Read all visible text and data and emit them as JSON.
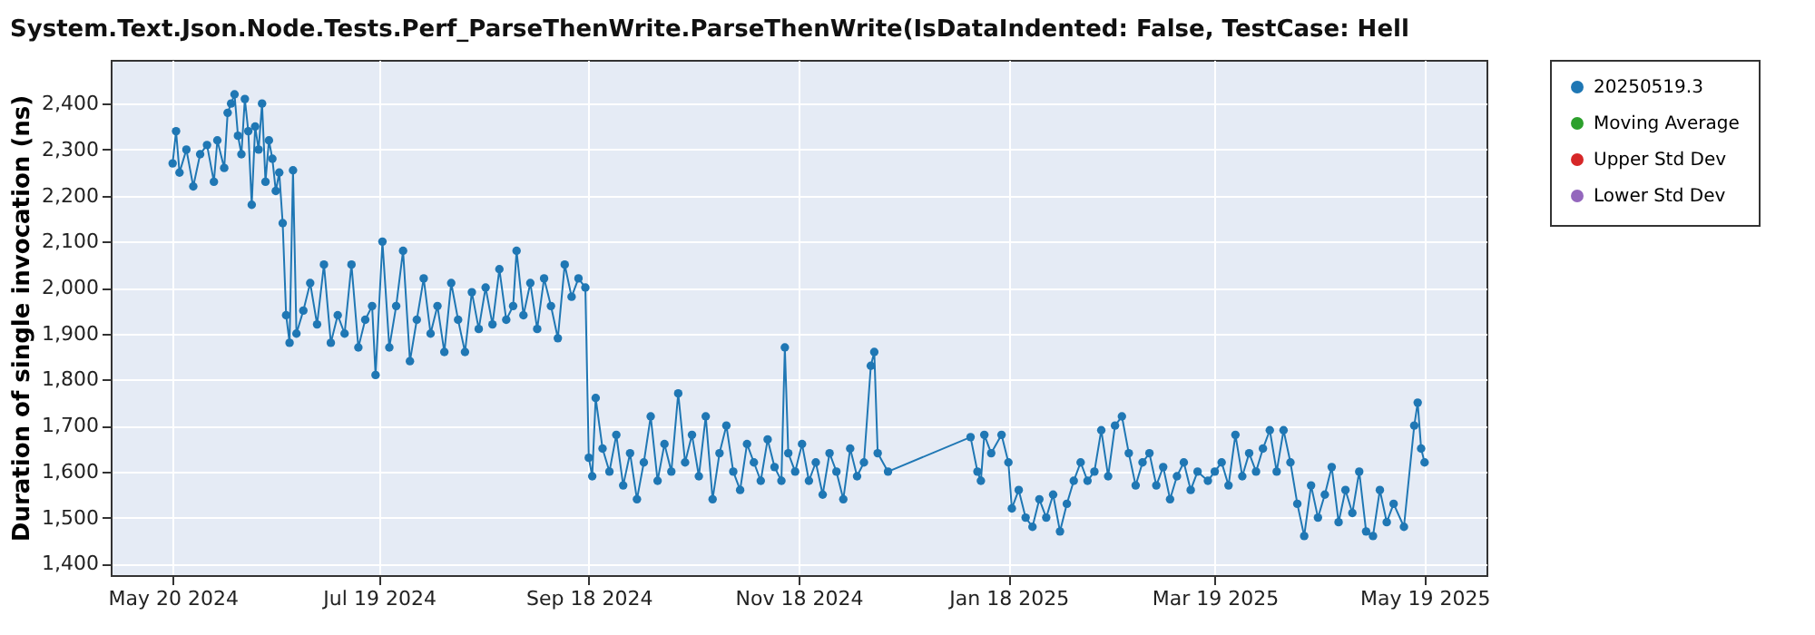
{
  "chart_data": {
    "type": "line",
    "title": "System.Text.Json.Node.Tests.Perf_ParseThenWrite.ParseThenWrite(IsDataIndented: False, TestCase: Hell",
    "ylabel": "Duration of single invocation (ns)",
    "x": [
      "2024-05-20",
      "2024-05-21",
      "2024-05-22",
      "2024-05-24",
      "2024-05-26",
      "2024-05-28",
      "2024-05-30",
      "2024-06-01",
      "2024-06-02",
      "2024-06-04",
      "2024-06-05",
      "2024-06-06",
      "2024-06-07",
      "2024-06-08",
      "2024-06-09",
      "2024-06-10",
      "2024-06-11",
      "2024-06-12",
      "2024-06-13",
      "2024-06-14",
      "2024-06-15",
      "2024-06-16",
      "2024-06-17",
      "2024-06-18",
      "2024-06-19",
      "2024-06-20",
      "2024-06-21",
      "2024-06-22",
      "2024-06-23",
      "2024-06-24",
      "2024-06-25",
      "2024-06-27",
      "2024-06-29",
      "2024-07-01",
      "2024-07-03",
      "2024-07-05",
      "2024-07-07",
      "2024-07-09",
      "2024-07-11",
      "2024-07-13",
      "2024-07-15",
      "2024-07-17",
      "2024-07-18",
      "2024-07-20",
      "2024-07-22",
      "2024-07-24",
      "2024-07-26",
      "2024-07-28",
      "2024-07-30",
      "2024-08-01",
      "2024-08-03",
      "2024-08-05",
      "2024-08-07",
      "2024-08-09",
      "2024-08-11",
      "2024-08-13",
      "2024-08-15",
      "2024-08-17",
      "2024-08-19",
      "2024-08-21",
      "2024-08-23",
      "2024-08-25",
      "2024-08-27",
      "2024-08-28",
      "2024-08-30",
      "2024-09-01",
      "2024-09-03",
      "2024-09-05",
      "2024-09-07",
      "2024-09-09",
      "2024-09-11",
      "2024-09-13",
      "2024-09-15",
      "2024-09-17",
      "2024-09-18",
      "2024-09-19",
      "2024-09-20",
      "2024-09-22",
      "2024-09-24",
      "2024-09-26",
      "2024-09-28",
      "2024-09-30",
      "2024-10-02",
      "2024-10-04",
      "2024-10-06",
      "2024-10-08",
      "2024-10-10",
      "2024-10-12",
      "2024-10-14",
      "2024-10-16",
      "2024-10-18",
      "2024-10-20",
      "2024-10-22",
      "2024-10-24",
      "2024-10-26",
      "2024-10-28",
      "2024-10-30",
      "2024-11-01",
      "2024-11-03",
      "2024-11-05",
      "2024-11-07",
      "2024-11-09",
      "2024-11-11",
      "2024-11-13",
      "2024-11-14",
      "2024-11-15",
      "2024-11-17",
      "2024-11-19",
      "2024-11-21",
      "2024-11-23",
      "2024-11-25",
      "2024-11-27",
      "2024-11-29",
      "2024-12-01",
      "2024-12-03",
      "2024-12-05",
      "2024-12-07",
      "2024-12-09",
      "2024-12-10",
      "2024-12-11",
      "2024-12-14",
      "2025-01-07",
      "2025-01-09",
      "2025-01-10",
      "2025-01-11",
      "2025-01-13",
      "2025-01-16",
      "2025-01-18",
      "2025-01-19",
      "2025-01-21",
      "2025-01-23",
      "2025-01-25",
      "2025-01-27",
      "2025-01-29",
      "2025-01-31",
      "2025-02-02",
      "2025-02-04",
      "2025-02-06",
      "2025-02-08",
      "2025-02-10",
      "2025-02-12",
      "2025-02-14",
      "2025-02-16",
      "2025-02-18",
      "2025-02-20",
      "2025-02-22",
      "2025-02-24",
      "2025-02-26",
      "2025-02-28",
      "2025-03-02",
      "2025-03-04",
      "2025-03-06",
      "2025-03-08",
      "2025-03-10",
      "2025-03-12",
      "2025-03-14",
      "2025-03-17",
      "2025-03-19",
      "2025-03-21",
      "2025-03-23",
      "2025-03-25",
      "2025-03-27",
      "2025-03-29",
      "2025-03-31",
      "2025-04-02",
      "2025-04-04",
      "2025-04-06",
      "2025-04-08",
      "2025-04-10",
      "2025-04-12",
      "2025-04-14",
      "2025-04-16",
      "2025-04-18",
      "2025-04-20",
      "2025-04-22",
      "2025-04-24",
      "2025-04-26",
      "2025-04-28",
      "2025-04-30",
      "2025-05-02",
      "2025-05-04",
      "2025-05-06",
      "2025-05-08",
      "2025-05-10",
      "2025-05-13",
      "2025-05-16",
      "2025-05-17",
      "2025-05-18",
      "2025-05-19"
    ],
    "series": [
      {
        "name": "20250519.3",
        "color": "#1f77b4",
        "values": [
          2270,
          2340,
          2250,
          2300,
          2220,
          2290,
          2310,
          2230,
          2320,
          2260,
          2380,
          2400,
          2420,
          2330,
          2290,
          2410,
          2340,
          2180,
          2350,
          2300,
          2400,
          2230,
          2320,
          2280,
          2210,
          2250,
          2140,
          1940,
          1880,
          2255,
          1900,
          1950,
          2010,
          1920,
          2050,
          1880,
          1940,
          1900,
          2050,
          1870,
          1930,
          1960,
          1810,
          2100,
          1870,
          1960,
          2080,
          1840,
          1930,
          2020,
          1900,
          1960,
          1860,
          2010,
          1930,
          1860,
          1990,
          1910,
          2000,
          1920,
          2040,
          1930,
          1960,
          2080,
          1940,
          2010,
          1910,
          2020,
          1960,
          1890,
          2050,
          1980,
          2020,
          2000,
          1630,
          1590,
          1760,
          1650,
          1600,
          1680,
          1570,
          1640,
          1540,
          1620,
          1720,
          1580,
          1660,
          1600,
          1770,
          1620,
          1680,
          1590,
          1720,
          1540,
          1640,
          1700,
          1600,
          1560,
          1660,
          1620,
          1580,
          1670,
          1610,
          1580,
          1870,
          1640,
          1600,
          1660,
          1580,
          1620,
          1550,
          1640,
          1600,
          1540,
          1650,
          1590,
          1620,
          1830,
          1860,
          1640,
          1600,
          1675,
          1600,
          1580,
          1680,
          1640,
          1680,
          1620,
          1520,
          1560,
          1500,
          1480,
          1540,
          1500,
          1550,
          1470,
          1530,
          1580,
          1620,
          1580,
          1600,
          1690,
          1590,
          1700,
          1720,
          1640,
          1570,
          1620,
          1640,
          1570,
          1610,
          1540,
          1590,
          1620,
          1560,
          1600,
          1580,
          1600,
          1620,
          1570,
          1680,
          1590,
          1640,
          1600,
          1650,
          1690,
          1600,
          1690,
          1620,
          1530,
          1460,
          1570,
          1500,
          1550,
          1610,
          1490,
          1560,
          1510,
          1600,
          1470,
          1460,
          1560,
          1490,
          1530,
          1480,
          1700,
          1750,
          1650,
          1620
        ]
      },
      {
        "name": "Moving Average",
        "color": "#2ca02c",
        "values": [
          null,
          null,
          null,
          null,
          null,
          null,
          null,
          null,
          null,
          null,
          null,
          null,
          null,
          null,
          null,
          null,
          null,
          null,
          null,
          null,
          null,
          null,
          null,
          null,
          null,
          null,
          null,
          null,
          null,
          null,
          null,
          null,
          null,
          null,
          null,
          null,
          null,
          null,
          null,
          null,
          null,
          null,
          null,
          null,
          null,
          null,
          null,
          null,
          null,
          null,
          null,
          null,
          null,
          null,
          null,
          null,
          null,
          null,
          null,
          null,
          null,
          null,
          null,
          null,
          null,
          null,
          null,
          null,
          null,
          null,
          null,
          null,
          null,
          null,
          null,
          null,
          null,
          null,
          null,
          null,
          null,
          null,
          null,
          null,
          null,
          null,
          null,
          null,
          null,
          null,
          null,
          null,
          null,
          null,
          null,
          null,
          null,
          null,
          null,
          null,
          null,
          null,
          null,
          null,
          null,
          null,
          null,
          null,
          null,
          null,
          null,
          null,
          null,
          null,
          null,
          null,
          null,
          null,
          null,
          null,
          null,
          null,
          null,
          null,
          null,
          null,
          null,
          null,
          null,
          null,
          null,
          null,
          null,
          null,
          null,
          null,
          null,
          null,
          null,
          null,
          null,
          null,
          null,
          null,
          null,
          null,
          null,
          null,
          null,
          null,
          null,
          null,
          null,
          null,
          null,
          null,
          null,
          null,
          null,
          null,
          null,
          null,
          null,
          null,
          null,
          null,
          null,
          null,
          null,
          null,
          null,
          null,
          null,
          null,
          null,
          null,
          null,
          null,
          null,
          null,
          null,
          null,
          null,
          null,
          null,
          null,
          null,
          null,
          null
        ]
      },
      {
        "name": "Upper Std Dev",
        "color": "#d62728",
        "values": [
          null,
          null,
          null,
          null,
          null,
          null,
          null,
          null,
          null,
          null,
          null,
          null,
          null,
          null,
          null,
          null,
          null,
          null,
          null,
          null,
          null,
          null,
          null,
          null,
          null,
          null,
          null,
          null,
          null,
          null,
          null,
          null,
          null,
          null,
          null,
          null,
          null,
          null,
          null,
          null,
          null,
          null,
          null,
          null,
          null,
          null,
          null,
          null,
          null,
          null,
          null,
          null,
          null,
          null,
          null,
          null,
          null,
          null,
          null,
          null,
          null,
          null,
          null,
          null,
          null,
          null,
          null,
          null,
          null,
          null,
          null,
          null,
          null,
          null,
          null,
          null,
          null,
          null,
          null,
          null,
          null,
          null,
          null,
          null,
          null,
          null,
          null,
          null,
          null,
          null,
          null,
          null,
          null,
          null,
          null,
          null,
          null,
          null,
          null,
          null,
          null,
          null,
          null,
          null,
          null,
          null,
          null,
          null,
          null,
          null,
          null,
          null,
          null,
          null,
          null,
          null,
          null,
          null,
          null,
          null,
          null,
          null,
          null,
          null,
          null,
          null,
          null,
          null,
          null,
          null,
          null,
          null,
          null,
          null,
          null,
          null,
          null,
          null,
          null,
          null,
          null,
          null,
          null,
          null,
          null,
          null,
          null,
          null,
          null,
          null,
          null,
          null,
          null,
          null,
          null,
          null,
          null,
          null,
          null,
          null,
          null,
          null,
          null,
          null,
          null,
          null,
          null,
          null,
          null,
          null,
          null,
          null,
          null,
          null,
          null,
          null,
          null,
          null,
          null,
          null,
          null,
          null,
          null,
          null,
          null,
          null,
          null,
          null,
          null
        ]
      },
      {
        "name": "Lower Std Dev",
        "color": "#9467bd",
        "values": [
          null,
          null,
          null,
          null,
          null,
          null,
          null,
          null,
          null,
          null,
          null,
          null,
          null,
          null,
          null,
          null,
          null,
          null,
          null,
          null,
          null,
          null,
          null,
          null,
          null,
          null,
          null,
          null,
          null,
          null,
          null,
          null,
          null,
          null,
          null,
          null,
          null,
          null,
          null,
          null,
          null,
          null,
          null,
          null,
          null,
          null,
          null,
          null,
          null,
          null,
          null,
          null,
          null,
          null,
          null,
          null,
          null,
          null,
          null,
          null,
          null,
          null,
          null,
          null,
          null,
          null,
          null,
          null,
          null,
          null,
          null,
          null,
          null,
          null,
          null,
          null,
          null,
          null,
          null,
          null,
          null,
          null,
          null,
          null,
          null,
          null,
          null,
          null,
          null,
          null,
          null,
          null,
          null,
          null,
          null,
          null,
          null,
          null,
          null,
          null,
          null,
          null,
          null,
          null,
          null,
          null,
          null,
          null,
          null,
          null,
          null,
          null,
          null,
          null,
          null,
          null,
          null,
          null,
          null,
          null,
          null,
          null,
          null,
          null,
          null,
          null,
          null,
          null,
          null,
          null,
          null,
          null,
          null,
          null,
          null,
          null,
          null,
          null,
          null,
          null,
          null,
          null,
          null,
          null,
          null,
          null,
          null,
          null,
          null,
          null,
          null,
          null,
          null,
          null,
          null,
          null,
          null,
          null,
          null,
          null,
          null,
          null,
          null,
          null,
          null,
          null,
          null,
          null,
          null,
          null,
          null,
          null,
          null,
          null,
          null,
          null,
          null,
          null,
          null,
          null,
          null,
          null,
          null,
          null,
          null,
          null,
          null,
          null,
          null
        ]
      }
    ],
    "xlim": [
      "2024-05-02",
      "2025-06-06"
    ],
    "xticks": [
      {
        "value": "2024-05-20",
        "label": "May 20 2024"
      },
      {
        "value": "2024-07-19",
        "label": "Jul 19 2024"
      },
      {
        "value": "2024-09-18",
        "label": "Sep 18 2024"
      },
      {
        "value": "2024-11-18",
        "label": "Nov 18 2024"
      },
      {
        "value": "2025-01-18",
        "label": "Jan 18 2025"
      },
      {
        "value": "2025-03-19",
        "label": "Mar 19 2025"
      },
      {
        "value": "2025-05-19",
        "label": "May 19 2025"
      }
    ],
    "ylim": [
      1375,
      2495
    ],
    "yticks": [
      {
        "value": 1400,
        "label": "1,400"
      },
      {
        "value": 1500,
        "label": "1,500"
      },
      {
        "value": 1600,
        "label": "1,600"
      },
      {
        "value": 1700,
        "label": "1,700"
      },
      {
        "value": 1800,
        "label": "1,800"
      },
      {
        "value": 1900,
        "label": "1,900"
      },
      {
        "value": 2000,
        "label": "2,000"
      },
      {
        "value": 2100,
        "label": "2,100"
      },
      {
        "value": 2200,
        "label": "2,200"
      },
      {
        "value": 2300,
        "label": "2,300"
      },
      {
        "value": 2400,
        "label": "2,400"
      }
    ],
    "grid": true,
    "legend": "right",
    "marker": "circle",
    "line_style": "solid"
  }
}
